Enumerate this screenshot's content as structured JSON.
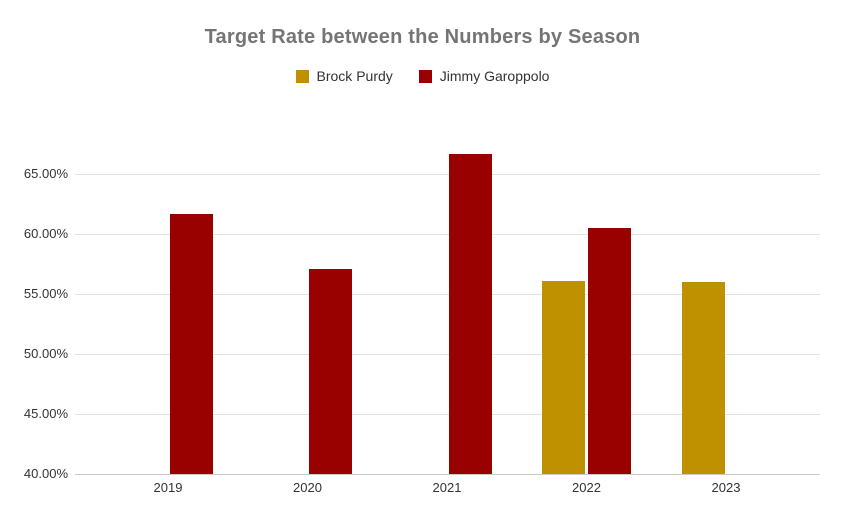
{
  "chart": {
    "title": "Target Rate between the Numbers by Season",
    "title_color": "#757575",
    "legend_text_color": "#333333",
    "axis_text_color": "#333333",
    "gridline_color": "#e2e2e2",
    "baseline_color": "#c9c9c9",
    "background": "#ffffff"
  },
  "chart_data": {
    "type": "bar",
    "title": "Target Rate between the Numbers by Season",
    "categories": [
      "2019",
      "2020",
      "2021",
      "2022",
      "2023"
    ],
    "series": [
      {
        "name": "Brock Purdy",
        "color": "#BF9000",
        "values": [
          null,
          null,
          null,
          56.1,
          56.0
        ]
      },
      {
        "name": "Jimmy Garoppolo",
        "color": "#990000",
        "values": [
          61.7,
          57.1,
          66.7,
          60.5,
          null
        ]
      }
    ],
    "xlabel": "",
    "ylabel": "",
    "y_axis": {
      "min": 40,
      "max": 67.5,
      "tick_step": 5,
      "ticks": [
        {
          "value": 65,
          "label": "65.00%"
        },
        {
          "value": 60,
          "label": "60.00%"
        },
        {
          "value": 55,
          "label": "55.00%"
        },
        {
          "value": 50,
          "label": "50.00%"
        },
        {
          "value": 45,
          "label": "45.00%"
        },
        {
          "value": 40,
          "label": "40.00%"
        }
      ]
    },
    "grid": true,
    "legend_position": "top"
  }
}
